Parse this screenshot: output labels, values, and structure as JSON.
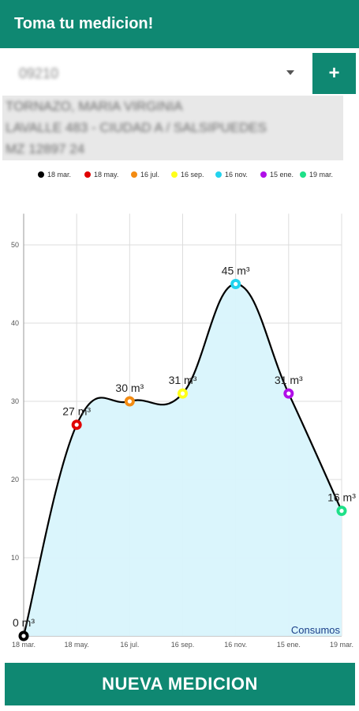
{
  "app_bar": {
    "title": "Toma tu medicion!"
  },
  "selector": {
    "value": "09210",
    "add_label": "+"
  },
  "account_info": {
    "lines": [
      "TORNAZO, MARIA VIRGINIA",
      "LAVALLE 483  - CIUDAD A / SALSIPUEDES",
      "MZ 12897 24"
    ]
  },
  "chart_data": {
    "type": "line",
    "title": "",
    "xlabel": "",
    "ylabel": "",
    "ylim": [
      0,
      55
    ],
    "y_ticks": [
      "10",
      "20",
      "30",
      "40",
      "50"
    ],
    "grid": true,
    "legend_position": "top",
    "description_label": "Consumos",
    "categories": [
      "18 mar.",
      "18 may.",
      "16 jul.",
      "16 sep.",
      "16 nov.",
      "15 ene.",
      "19 mar."
    ],
    "values": [
      0,
      27,
      30,
      31,
      45,
      31,
      16
    ],
    "value_labels": [
      "0 m³",
      "27 m³",
      "30 m³",
      "31 m³",
      "45 m³",
      "31 m³",
      "16 m³"
    ],
    "point_colors": [
      "#000000",
      "#e00000",
      "#f38b12",
      "#ffff1a",
      "#22d3ee",
      "#b00ee8",
      "#1ee088"
    ],
    "fill_color": "#d8f4fc",
    "line_color": "#000000"
  },
  "bottom_button": {
    "label": "NUEVA MEDICION"
  },
  "colors": {
    "primary": "#0f8872"
  }
}
